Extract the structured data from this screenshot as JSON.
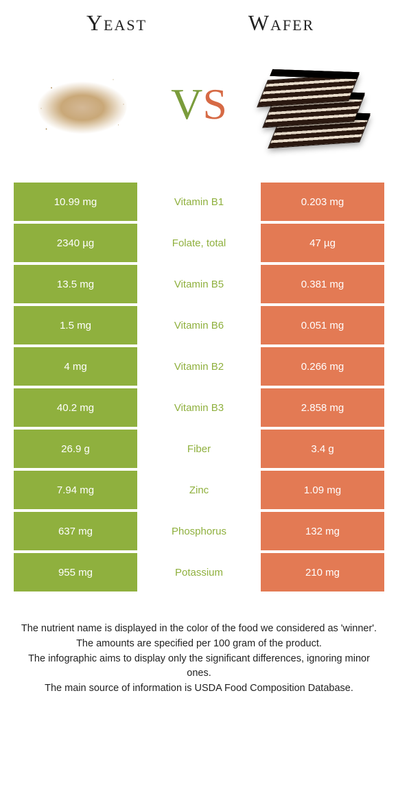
{
  "header": {
    "left_title": "Yeast",
    "right_title": "Wafer",
    "vs_v": "V",
    "vs_s": "S"
  },
  "colors": {
    "left_bg": "#8fb03e",
    "right_bg": "#e37a54",
    "mid_winner_text": "#8fb03e",
    "page_bg": "#ffffff"
  },
  "rows": [
    {
      "left": "10.99 mg",
      "mid": "Vitamin B1",
      "right": "0.203 mg",
      "winner": "left"
    },
    {
      "left": "2340 µg",
      "mid": "Folate, total",
      "right": "47 µg",
      "winner": "left"
    },
    {
      "left": "13.5 mg",
      "mid": "Vitamin B5",
      "right": "0.381 mg",
      "winner": "left"
    },
    {
      "left": "1.5 mg",
      "mid": "Vitamin B6",
      "right": "0.051 mg",
      "winner": "left"
    },
    {
      "left": "4 mg",
      "mid": "Vitamin B2",
      "right": "0.266 mg",
      "winner": "left"
    },
    {
      "left": "40.2 mg",
      "mid": "Vitamin B3",
      "right": "2.858 mg",
      "winner": "left"
    },
    {
      "left": "26.9 g",
      "mid": "Fiber",
      "right": "3.4 g",
      "winner": "left"
    },
    {
      "left": "7.94 mg",
      "mid": "Zinc",
      "right": "1.09 mg",
      "winner": "left"
    },
    {
      "left": "637 mg",
      "mid": "Phosphorus",
      "right": "132 mg",
      "winner": "left"
    },
    {
      "left": "955 mg",
      "mid": "Potassium",
      "right": "210 mg",
      "winner": "left"
    }
  ],
  "footer": {
    "line1": "The nutrient name is displayed in the color of the food we considered as 'winner'.",
    "line2": "The amounts are specified per 100 gram of the product.",
    "line3": "The infographic aims to display only the significant differences, ignoring minor ones.",
    "line4": "The main source of information is USDA Food Composition Database."
  }
}
